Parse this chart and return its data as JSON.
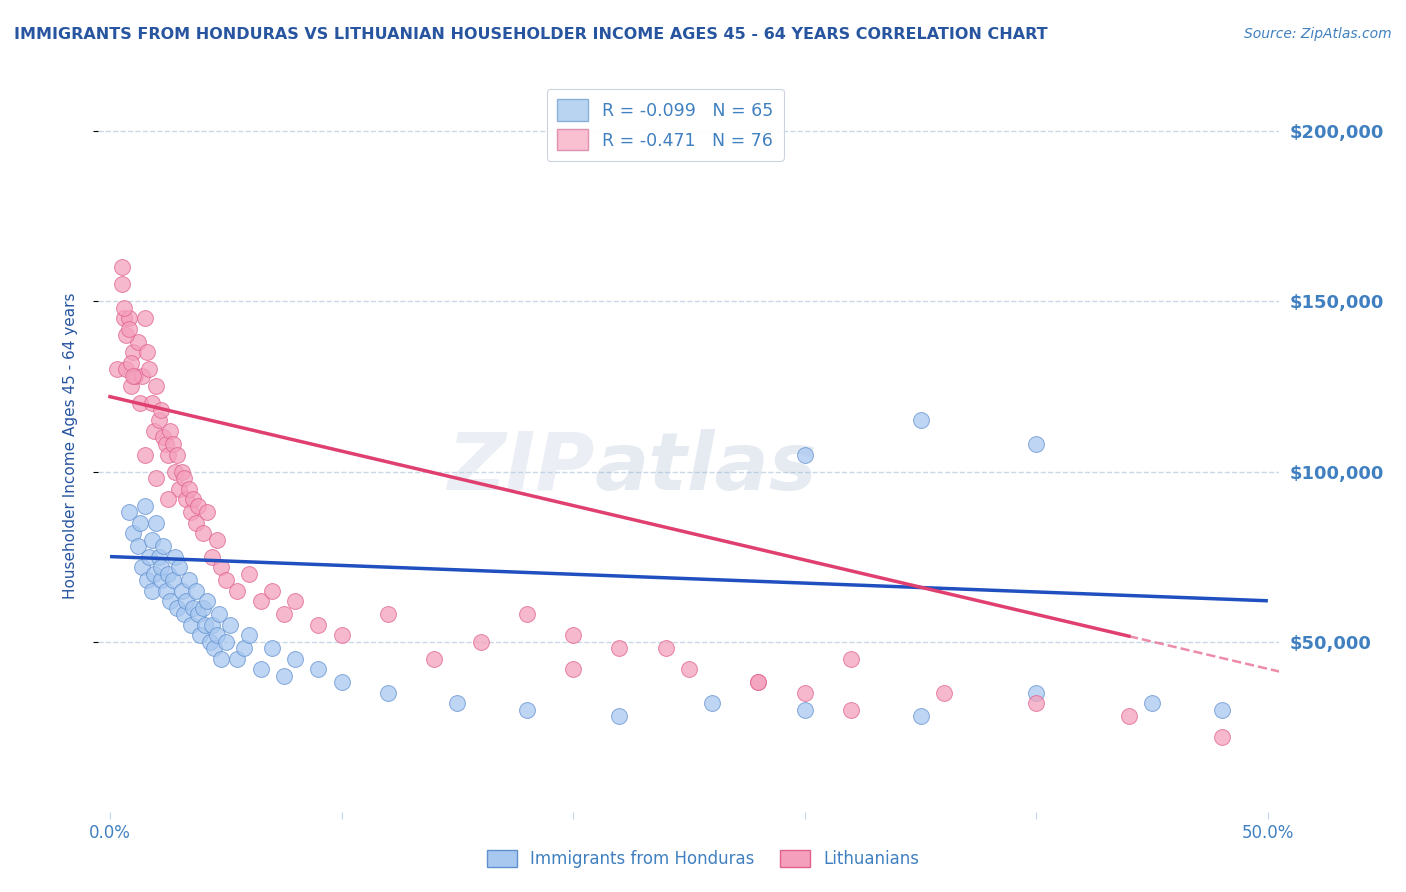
{
  "title": "IMMIGRANTS FROM HONDURAS VS LITHUANIAN HOUSEHOLDER INCOME AGES 45 - 64 YEARS CORRELATION CHART",
  "source": "Source: ZipAtlas.com",
  "ylabel": "Householder Income Ages 45 - 64 years",
  "y_tick_labels": [
    "$50,000",
    "$100,000",
    "$150,000",
    "$200,000"
  ],
  "y_tick_values": [
    50000,
    100000,
    150000,
    200000
  ],
  "xlim": [
    -0.005,
    0.505
  ],
  "ylim": [
    0,
    215000
  ],
  "legend_entries": [
    {
      "label": "R = -0.099   N = 65",
      "color": "#b8d4f0"
    },
    {
      "label": "R = -0.471   N = 76",
      "color": "#f8c0d0"
    }
  ],
  "legend_bottom": [
    "Immigrants from Honduras",
    "Lithuanians"
  ],
  "series1_color": "#a8c8f0",
  "series2_color": "#f4a0bc",
  "series1_edge": "#6090d0",
  "series2_edge": "#e06090",
  "line1_color": "#2050c0",
  "line2_color": "#e04070",
  "watermark_zip": "ZIP",
  "watermark_atlas": "atlas",
  "background_color": "#ffffff",
  "grid_color": "#c8d8e8",
  "title_color": "#2855a0",
  "axis_label_color": "#2855a0",
  "tick_color": "#4080c0",
  "source_color": "#4080c0",
  "line1_x0": 0.0,
  "line1_y0": 75000,
  "line1_x1": 0.5,
  "line1_y1": 62000,
  "line2_x0": 0.0,
  "line2_y0": 122000,
  "line2_x1": 0.5,
  "line2_y1": 42000,
  "line2_solid_end": 0.44,
  "line2_dashed_end": 0.505,
  "series1_x": [
    0.008,
    0.01,
    0.012,
    0.013,
    0.014,
    0.015,
    0.016,
    0.017,
    0.018,
    0.018,
    0.019,
    0.02,
    0.021,
    0.022,
    0.022,
    0.023,
    0.024,
    0.025,
    0.026,
    0.027,
    0.028,
    0.029,
    0.03,
    0.031,
    0.032,
    0.033,
    0.034,
    0.035,
    0.036,
    0.037,
    0.038,
    0.039,
    0.04,
    0.041,
    0.042,
    0.043,
    0.044,
    0.045,
    0.046,
    0.047,
    0.048,
    0.05,
    0.052,
    0.055,
    0.058,
    0.06,
    0.065,
    0.07,
    0.075,
    0.08,
    0.09,
    0.1,
    0.12,
    0.15,
    0.18,
    0.22,
    0.26,
    0.3,
    0.35,
    0.4,
    0.45,
    0.48,
    0.3,
    0.35,
    0.4
  ],
  "series1_y": [
    88000,
    82000,
    78000,
    85000,
    72000,
    90000,
    68000,
    75000,
    80000,
    65000,
    70000,
    85000,
    75000,
    68000,
    72000,
    78000,
    65000,
    70000,
    62000,
    68000,
    75000,
    60000,
    72000,
    65000,
    58000,
    62000,
    68000,
    55000,
    60000,
    65000,
    58000,
    52000,
    60000,
    55000,
    62000,
    50000,
    55000,
    48000,
    52000,
    58000,
    45000,
    50000,
    55000,
    45000,
    48000,
    52000,
    42000,
    48000,
    40000,
    45000,
    42000,
    38000,
    35000,
    32000,
    30000,
    28000,
    32000,
    30000,
    28000,
    35000,
    32000,
    30000,
    105000,
    115000,
    108000
  ],
  "series2_x": [
    0.003,
    0.005,
    0.006,
    0.007,
    0.008,
    0.009,
    0.01,
    0.011,
    0.012,
    0.013,
    0.014,
    0.015,
    0.016,
    0.017,
    0.018,
    0.019,
    0.02,
    0.021,
    0.022,
    0.023,
    0.024,
    0.025,
    0.026,
    0.027,
    0.028,
    0.029,
    0.03,
    0.031,
    0.032,
    0.033,
    0.034,
    0.035,
    0.036,
    0.037,
    0.038,
    0.04,
    0.042,
    0.044,
    0.046,
    0.048,
    0.05,
    0.055,
    0.06,
    0.065,
    0.07,
    0.075,
    0.08,
    0.09,
    0.1,
    0.12,
    0.14,
    0.16,
    0.2,
    0.24,
    0.28,
    0.32,
    0.36,
    0.4,
    0.44,
    0.48,
    0.005,
    0.006,
    0.007,
    0.008,
    0.009,
    0.01,
    0.015,
    0.02,
    0.025,
    0.18,
    0.2,
    0.22,
    0.25,
    0.28,
    0.3,
    0.32
  ],
  "series2_y": [
    130000,
    160000,
    145000,
    130000,
    145000,
    125000,
    135000,
    128000,
    138000,
    120000,
    128000,
    145000,
    135000,
    130000,
    120000,
    112000,
    125000,
    115000,
    118000,
    110000,
    108000,
    105000,
    112000,
    108000,
    100000,
    105000,
    95000,
    100000,
    98000,
    92000,
    95000,
    88000,
    92000,
    85000,
    90000,
    82000,
    88000,
    75000,
    80000,
    72000,
    68000,
    65000,
    70000,
    62000,
    65000,
    58000,
    62000,
    55000,
    52000,
    58000,
    45000,
    50000,
    42000,
    48000,
    38000,
    45000,
    35000,
    32000,
    28000,
    22000,
    155000,
    148000,
    140000,
    142000,
    132000,
    128000,
    105000,
    98000,
    92000,
    58000,
    52000,
    48000,
    42000,
    38000,
    35000,
    30000
  ]
}
